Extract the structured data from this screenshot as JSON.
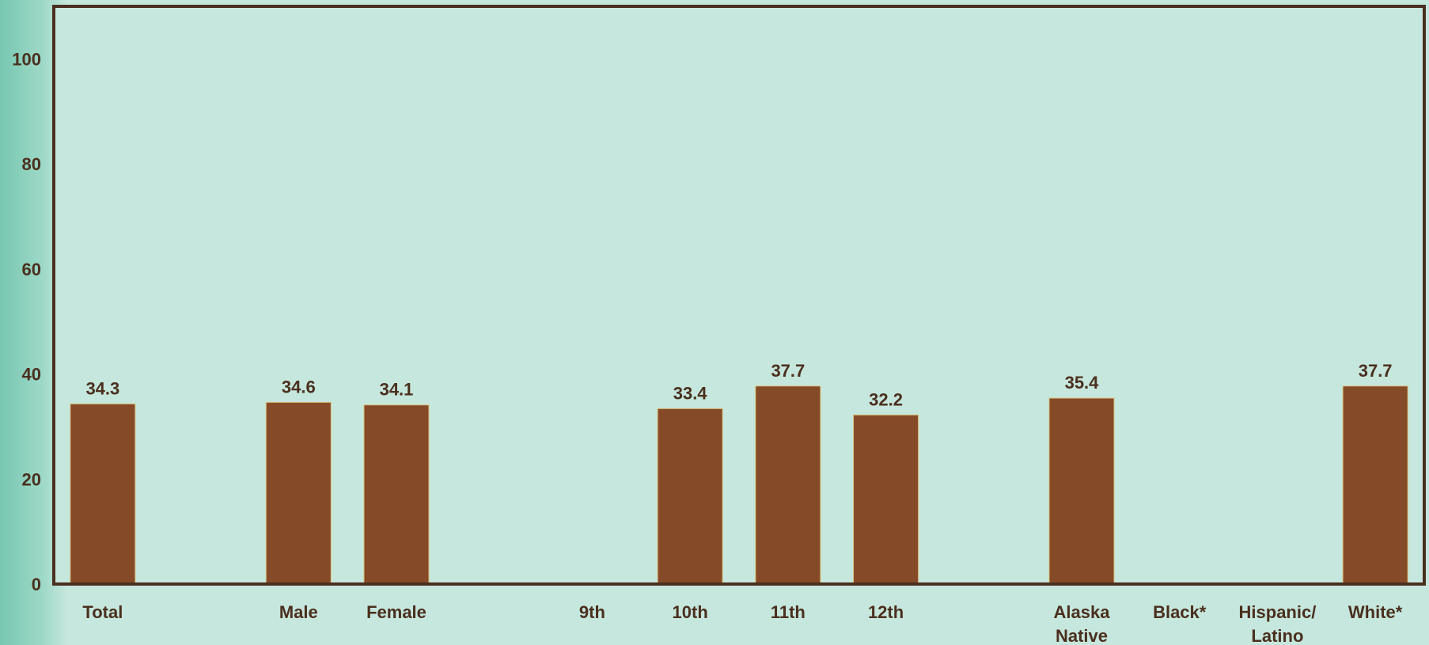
{
  "chart_data": {
    "type": "bar",
    "title": "",
    "xlabel": "",
    "ylabel": "",
    "ylim": [
      0,
      110
    ],
    "yticks": [
      0,
      20,
      40,
      60,
      80,
      100
    ],
    "grid": false,
    "categories": [
      {
        "label": "Total",
        "value": 34.3
      },
      {
        "label": "",
        "value": null
      },
      {
        "label": "Male",
        "value": 34.6
      },
      {
        "label": "Female",
        "value": 34.1
      },
      {
        "label": "",
        "value": null
      },
      {
        "label": "9th",
        "value": null
      },
      {
        "label": "10th",
        "value": 33.4
      },
      {
        "label": "11th",
        "value": 37.7
      },
      {
        "label": "12th",
        "value": 32.2
      },
      {
        "label": "",
        "value": null
      },
      {
        "label": "Alaska Native",
        "value": 35.4
      },
      {
        "label": "Black*",
        "value": null
      },
      {
        "label": "Hispanic/ Latino",
        "value": null
      },
      {
        "label": "White*",
        "value": 37.7
      }
    ],
    "colors": {
      "bar": "#854a28",
      "bar_edge": "#d8c07a",
      "axis": "#4a2f1e",
      "plot_bg": "#c6e7dd",
      "text": "#4a2f1e"
    }
  }
}
